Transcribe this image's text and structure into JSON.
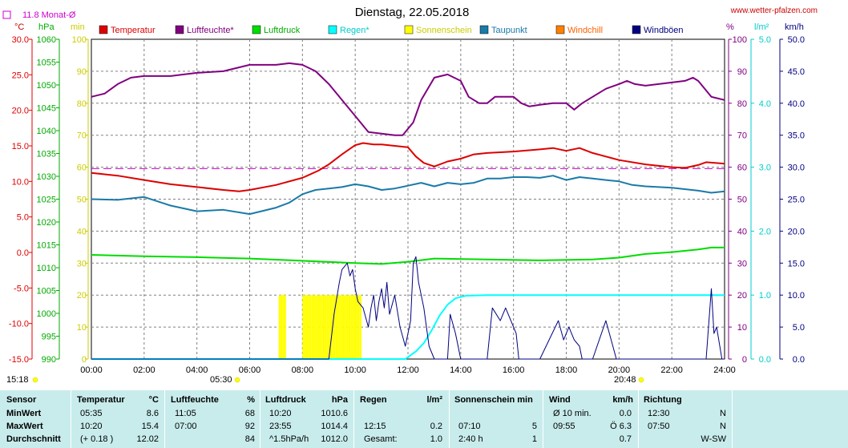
{
  "title": "Dienstag, 22.05.2018",
  "site": "www.wetter-pfalzen.com",
  "month_avg": "11.8 Monat-Ø",
  "units": {
    "temp": "°C",
    "hpa": "hPa",
    "min": "min",
    "pct": "%",
    "rain": "l/m²",
    "kmh": "km/h"
  },
  "sunrise": "05:30",
  "sunset": "20:48",
  "time_now": "15:18",
  "colors": {
    "temp": "#dd0000",
    "hum": "#800080",
    "press": "#00dd00",
    "rain": "#00ffff",
    "sun": "#ffff00",
    "dew": "#1a7aa8",
    "chill": "#ff8000",
    "gust": "#000080",
    "grid": "#808080",
    "avg": "#cc00cc"
  },
  "legend": [
    {
      "label": "Temperatur",
      "color": "#dd0000",
      "tcolor": "#dd0000"
    },
    {
      "label": "Luftfeuchte*",
      "color": "#800080",
      "tcolor": "#800080"
    },
    {
      "label": "Luftdruck",
      "color": "#00dd00",
      "tcolor": "#00aa00"
    },
    {
      "label": "Regen*",
      "color": "#00ffff",
      "tcolor": "#00cccc"
    },
    {
      "label": "Sonnenschein",
      "color": "#ffff00",
      "tcolor": "#cccc00"
    },
    {
      "label": "Taupunkt",
      "color": "#1a7aa8",
      "tcolor": "#1a7aa8"
    },
    {
      "label": "Windchill",
      "color": "#ff8000",
      "tcolor": "#ff6000"
    },
    {
      "label": "Windböen",
      "color": "#000080",
      "tcolor": "#000080"
    }
  ],
  "chart_data": {
    "type": "line",
    "x_range_hours": [
      0,
      24
    ],
    "x_ticks": [
      "00:00",
      "02:00",
      "04:00",
      "06:00",
      "08:00",
      "10:00",
      "12:00",
      "14:00",
      "16:00",
      "18:00",
      "20:00",
      "22:00",
      "24:00"
    ],
    "axes": {
      "temp": {
        "range": [
          -15,
          30
        ],
        "ticks": [
          "30.0",
          "25.0",
          "20.0",
          "15.0",
          "10.0",
          "5.0",
          "0.0",
          "-5.0",
          "-10.0",
          "-15.0"
        ]
      },
      "press": {
        "range": [
          990,
          1060
        ],
        "ticks": [
          "1060",
          "1055",
          "1050",
          "1045",
          "1040",
          "1035",
          "1030",
          "1025",
          "1020",
          "1015",
          "1010",
          "1005",
          "1000",
          "995",
          "990"
        ]
      },
      "sunmin": {
        "range": [
          0,
          100
        ],
        "ticks": [
          "100",
          "90",
          "80",
          "70",
          "60",
          "50",
          "40",
          "30",
          "20",
          "10",
          "0"
        ]
      },
      "pct": {
        "range": [
          0,
          100
        ],
        "ticks": [
          "100",
          "90",
          "80",
          "70",
          "60",
          "50",
          "40",
          "30",
          "20",
          "10",
          "0"
        ]
      },
      "rain": {
        "range": [
          0,
          5
        ],
        "ticks": [
          "5.0",
          "4.0",
          "3.0",
          "2.0",
          "1.0",
          "0.0"
        ]
      },
      "wind": {
        "range": [
          0,
          50
        ],
        "ticks": [
          "50.0",
          "45.0",
          "40.0",
          "35.0",
          "30.0",
          "25.0",
          "20.0",
          "15.0",
          "10.0",
          "5.0",
          "0.0"
        ]
      }
    },
    "month_avg_temp": 11.8,
    "series": [
      {
        "key": "hum",
        "name": "Luftfeuchte*",
        "axis": "pct",
        "points": [
          [
            0,
            82
          ],
          [
            0.5,
            83
          ],
          [
            1,
            86
          ],
          [
            1.5,
            88
          ],
          [
            2,
            88.5
          ],
          [
            3,
            88.5
          ],
          [
            4,
            89.5
          ],
          [
            5,
            90
          ],
          [
            6,
            92
          ],
          [
            7,
            92
          ],
          [
            7.5,
            92.5
          ],
          [
            8,
            92
          ],
          [
            8.5,
            90
          ],
          [
            9,
            86
          ],
          [
            9.5,
            81
          ],
          [
            10,
            76
          ],
          [
            10.5,
            71
          ],
          [
            11,
            70.5
          ],
          [
            11.5,
            70
          ],
          [
            11.8,
            70
          ],
          [
            12.2,
            74
          ],
          [
            12.5,
            81
          ],
          [
            13,
            88
          ],
          [
            13.5,
            89
          ],
          [
            14,
            87
          ],
          [
            14.3,
            82
          ],
          [
            14.7,
            80
          ],
          [
            15,
            80
          ],
          [
            15.3,
            82
          ],
          [
            16,
            82
          ],
          [
            16.3,
            80
          ],
          [
            16.6,
            79
          ],
          [
            17,
            79.5
          ],
          [
            17.5,
            80
          ],
          [
            18,
            80
          ],
          [
            18.3,
            78
          ],
          [
            18.6,
            80
          ],
          [
            19,
            82
          ],
          [
            19.5,
            84.5
          ],
          [
            20,
            86
          ],
          [
            20.3,
            87
          ],
          [
            20.6,
            86
          ],
          [
            21,
            85.5
          ],
          [
            21.5,
            86
          ],
          [
            22,
            86.5
          ],
          [
            22.5,
            87
          ],
          [
            22.8,
            88
          ],
          [
            23,
            87
          ],
          [
            23.5,
            82
          ],
          [
            24,
            81
          ]
        ]
      },
      {
        "key": "temp",
        "name": "Temperatur",
        "axis": "temp",
        "points": [
          [
            0,
            11.2
          ],
          [
            1,
            10.8
          ],
          [
            2,
            10.2
          ],
          [
            3,
            9.6
          ],
          [
            4,
            9.2
          ],
          [
            5,
            8.8
          ],
          [
            5.6,
            8.6
          ],
          [
            6,
            8.8
          ],
          [
            7,
            9.5
          ],
          [
            8,
            10.5
          ],
          [
            8.6,
            11.5
          ],
          [
            9,
            12.4
          ],
          [
            9.5,
            13.8
          ],
          [
            10,
            15.1
          ],
          [
            10.3,
            15.4
          ],
          [
            10.7,
            15.2
          ],
          [
            11,
            15.2
          ],
          [
            11.5,
            15.0
          ],
          [
            12,
            14.8
          ],
          [
            12.3,
            13.5
          ],
          [
            12.6,
            12.6
          ],
          [
            13,
            12.1
          ],
          [
            13.5,
            12.8
          ],
          [
            14,
            13.2
          ],
          [
            14.5,
            13.8
          ],
          [
            15,
            14.0
          ],
          [
            16,
            14.2
          ],
          [
            17,
            14.5
          ],
          [
            17.5,
            14.7
          ],
          [
            18,
            14.3
          ],
          [
            18.5,
            14.7
          ],
          [
            19,
            14.0
          ],
          [
            19.5,
            13.5
          ],
          [
            20,
            13.0
          ],
          [
            21,
            12.4
          ],
          [
            22,
            12.0
          ],
          [
            22.5,
            11.9
          ],
          [
            23,
            12.3
          ],
          [
            23.3,
            12.7
          ],
          [
            24,
            12.5
          ]
        ]
      },
      {
        "key": "dew",
        "name": "Taupunkt",
        "axis": "temp",
        "points": [
          [
            0,
            7.5
          ],
          [
            1,
            7.4
          ],
          [
            2,
            7.8
          ],
          [
            3,
            6.6
          ],
          [
            4,
            5.8
          ],
          [
            5,
            6.0
          ],
          [
            6,
            5.4
          ],
          [
            7,
            6.3
          ],
          [
            7.5,
            7.0
          ],
          [
            8,
            8.2
          ],
          [
            8.5,
            8.8
          ],
          [
            9,
            9.0
          ],
          [
            9.5,
            9.2
          ],
          [
            10,
            9.6
          ],
          [
            10.5,
            9.3
          ],
          [
            11,
            8.8
          ],
          [
            11.5,
            9.0
          ],
          [
            12,
            9.4
          ],
          [
            12.5,
            9.8
          ],
          [
            13,
            9.3
          ],
          [
            13.5,
            9.8
          ],
          [
            14,
            9.6
          ],
          [
            14.5,
            9.8
          ],
          [
            15,
            10.4
          ],
          [
            15.5,
            10.4
          ],
          [
            16,
            10.6
          ],
          [
            16.5,
            10.6
          ],
          [
            17,
            10.5
          ],
          [
            17.5,
            10.8
          ],
          [
            18,
            10.2
          ],
          [
            18.5,
            10.6
          ],
          [
            19,
            10.4
          ],
          [
            19.5,
            10.2
          ],
          [
            20,
            10.0
          ],
          [
            20.5,
            9.5
          ],
          [
            21,
            9.3
          ],
          [
            22,
            9.1
          ],
          [
            23,
            8.7
          ],
          [
            23.5,
            8.4
          ],
          [
            24,
            8.6
          ]
        ]
      },
      {
        "key": "press",
        "name": "Luftdruck",
        "axis": "press",
        "points": [
          [
            0,
            1012.8
          ],
          [
            2,
            1012.5
          ],
          [
            4,
            1012.3
          ],
          [
            6,
            1012.0
          ],
          [
            8,
            1011.5
          ],
          [
            10,
            1011.0
          ],
          [
            11,
            1010.8
          ],
          [
            12,
            1011.3
          ],
          [
            13,
            1012.0
          ],
          [
            15,
            1011.8
          ],
          [
            17,
            1011.6
          ],
          [
            19,
            1011.8
          ],
          [
            20,
            1012.2
          ],
          [
            21,
            1013.0
          ],
          [
            22,
            1013.4
          ],
          [
            23,
            1014.0
          ],
          [
            23.5,
            1014.4
          ],
          [
            24,
            1014.4
          ]
        ]
      },
      {
        "key": "rain",
        "name": "Regen*",
        "axis": "rain",
        "points": [
          [
            0,
            0
          ],
          [
            11.9,
            0
          ],
          [
            12.3,
            0.12
          ],
          [
            12.6,
            0.25
          ],
          [
            12.9,
            0.45
          ],
          [
            13.2,
            0.68
          ],
          [
            13.5,
            0.85
          ],
          [
            13.8,
            0.95
          ],
          [
            14.2,
            0.99
          ],
          [
            15,
            1.0
          ],
          [
            24,
            1.0
          ]
        ]
      },
      {
        "key": "gust",
        "name": "Windböen",
        "axis": "wind",
        "points": [
          [
            0,
            0
          ],
          [
            9,
            0
          ],
          [
            9.2,
            7
          ],
          [
            9.4,
            12
          ],
          [
            9.5,
            14
          ],
          [
            9.7,
            15
          ],
          [
            9.8,
            13
          ],
          [
            9.9,
            14
          ],
          [
            10.0,
            11
          ],
          [
            10.1,
            9
          ],
          [
            10.3,
            8
          ],
          [
            10.5,
            5
          ],
          [
            10.6,
            8
          ],
          [
            10.7,
            10
          ],
          [
            10.8,
            6
          ],
          [
            10.9,
            9
          ],
          [
            11.0,
            11
          ],
          [
            11.1,
            8
          ],
          [
            11.2,
            12
          ],
          [
            11.3,
            7
          ],
          [
            11.5,
            10
          ],
          [
            11.7,
            5
          ],
          [
            11.9,
            2
          ],
          [
            12.1,
            6
          ],
          [
            12.2,
            15
          ],
          [
            12.3,
            16
          ],
          [
            12.4,
            12
          ],
          [
            12.6,
            8
          ],
          [
            12.8,
            2
          ],
          [
            13.0,
            0
          ],
          [
            13.5,
            0
          ],
          [
            13.6,
            7
          ],
          [
            13.8,
            4
          ],
          [
            14.0,
            0
          ],
          [
            15,
            0
          ],
          [
            15.2,
            8
          ],
          [
            15.5,
            6
          ],
          [
            15.7,
            8
          ],
          [
            15.9,
            6
          ],
          [
            16.1,
            4
          ],
          [
            16.2,
            0
          ],
          [
            17,
            0
          ],
          [
            17.7,
            6
          ],
          [
            17.9,
            3
          ],
          [
            18.1,
            5
          ],
          [
            18.3,
            3
          ],
          [
            18.5,
            2
          ],
          [
            18.6,
            0
          ],
          [
            19,
            0
          ],
          [
            19.5,
            6
          ],
          [
            19.7,
            3
          ],
          [
            19.9,
            0
          ],
          [
            20,
            0
          ],
          [
            23,
            0
          ],
          [
            23.3,
            0
          ],
          [
            23.5,
            11
          ],
          [
            23.6,
            4
          ],
          [
            23.7,
            5
          ],
          [
            23.9,
            0
          ],
          [
            24,
            0
          ]
        ]
      }
    ],
    "sunshine_bars": [
      [
        7.1,
        7.35
      ],
      [
        8.0,
        10.2
      ]
    ],
    "sunshine_bar_pct": 5
  },
  "table": {
    "cols": [
      {
        "header": "Sensor"
      },
      {
        "header": "Temperatur",
        "unit": "°C"
      },
      {
        "header": "Luftfeuchte",
        "unit": "%"
      },
      {
        "header": "Luftdruck",
        "unit": "hPa"
      },
      {
        "header": "Regen",
        "unit": "l/m²"
      },
      {
        "header": "Sonnenschein min"
      },
      {
        "header": "Wind",
        "unit": "km/h"
      },
      {
        "header": "Richtung"
      }
    ],
    "rows": [
      {
        "label": "MinWert",
        "temp": [
          "05:35",
          "8.6"
        ],
        "hum": [
          "11:05",
          "68"
        ],
        "press": [
          "10:20",
          "1010.6"
        ],
        "rain": [
          "",
          ""
        ],
        "sun": [
          "",
          ""
        ],
        "wind": [
          "Ø 10 min.",
          "0.0"
        ],
        "dir": [
          "12:30",
          "N"
        ]
      },
      {
        "label": "MaxWert",
        "temp": [
          "10:20",
          "15.4"
        ],
        "hum": [
          "07:00",
          "92"
        ],
        "press": [
          "23:55",
          "1014.4"
        ],
        "rain": [
          "12:15",
          "0.2"
        ],
        "sun": [
          "07:10",
          "5"
        ],
        "wind": [
          "09:55",
          "Ö 6.3"
        ],
        "dir": [
          "07:50",
          "N"
        ]
      },
      {
        "label": "Durchschnitt",
        "temp": [
          "(+ 0.18 )",
          "12.02"
        ],
        "hum": [
          "",
          "84"
        ],
        "press": [
          "^1.5hPa/h",
          "1012.0"
        ],
        "rain": [
          "Gesamt:",
          "1.0"
        ],
        "sun": [
          "2:40 h",
          "1"
        ],
        "wind": [
          "",
          "0.7"
        ],
        "dir": [
          "",
          "W-SW"
        ]
      }
    ]
  }
}
